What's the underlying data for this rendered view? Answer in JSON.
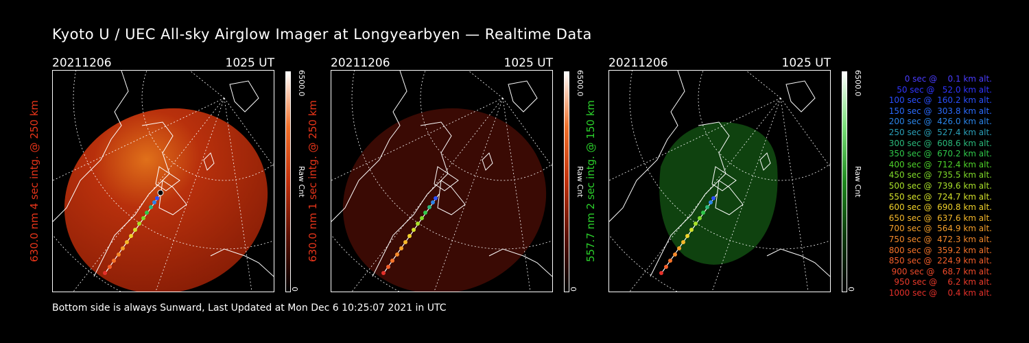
{
  "title": "Kyoto U / UEC All-sky Airglow Imager at Longyearbyen — Realtime Data",
  "footer": "Bottom side is always Sunward, Last Updated at Mon Dec  6 10:25:07 2021 in UTC",
  "colorbar": {
    "max_label": "6500.0",
    "unit_label": "Raw Cnt",
    "min_label": "0"
  },
  "panels": [
    {
      "date": "20211206",
      "time": "1025 UT",
      "ylabel": "630.0 nm 4 sec intg. @ 250 km",
      "label_color": "#e8351a",
      "tint": "red_bright"
    },
    {
      "date": "20211206",
      "time": "1025 UT",
      "ylabel": "630.0 nm 1 sec intg. @ 250 km",
      "label_color": "#e8351a",
      "tint": "red_dim"
    },
    {
      "date": "20211206",
      "time": "1025 UT",
      "ylabel": "557.7 nm 2 sec intg. @ 150 km",
      "label_color": "#2bd12b",
      "tint": "green"
    }
  ],
  "legend": [
    {
      "text": "0 sec @    0.1 km alt.",
      "color": "#4a3cff"
    },
    {
      "text": "50 sec @   52.0 km alt.",
      "color": "#2f35ff"
    },
    {
      "text": "100 sec @  160.2 km alt.",
      "color": "#2a50ff"
    },
    {
      "text": "150 sec @  303.8 km alt.",
      "color": "#2a6cff"
    },
    {
      "text": "200 sec @  426.0 km alt.",
      "color": "#2a84e8"
    },
    {
      "text": "250 sec @  527.4 km alt.",
      "color": "#2a9fb8"
    },
    {
      "text": "300 sec @  608.6 km alt.",
      "color": "#2ab87a"
    },
    {
      "text": "350 sec @  670.2 km alt.",
      "color": "#30c94a"
    },
    {
      "text": "400 sec @  712.4 km alt.",
      "color": "#4fd32a"
    },
    {
      "text": "450 sec @  735.5 km alt.",
      "color": "#7fdb2a"
    },
    {
      "text": "500 sec @  739.6 km alt.",
      "color": "#a9e12a"
    },
    {
      "text": "550 sec @  724.7 km alt.",
      "color": "#d3e02a"
    },
    {
      "text": "600 sec @  690.8 km alt.",
      "color": "#f0d22a"
    },
    {
      "text": "650 sec @  637.6 km alt.",
      "color": "#f5b82a"
    },
    {
      "text": "700 sec @  564.9 km alt.",
      "color": "#f5a02a"
    },
    {
      "text": "750 sec @  472.3 km alt.",
      "color": "#f5892a"
    },
    {
      "text": "800 sec @  359.2 km alt.",
      "color": "#f5732a"
    },
    {
      "text": "850 sec @  224.9 km alt.",
      "color": "#f55f2a"
    },
    {
      "text": "900 sec @   68.7 km alt.",
      "color": "#f04a2a"
    },
    {
      "text": "950 sec @    6.2 km alt.",
      "color": "#ea3a2a"
    },
    {
      "text": "1000 sec @    0.4 km alt.",
      "color": "#e5302a"
    }
  ]
}
